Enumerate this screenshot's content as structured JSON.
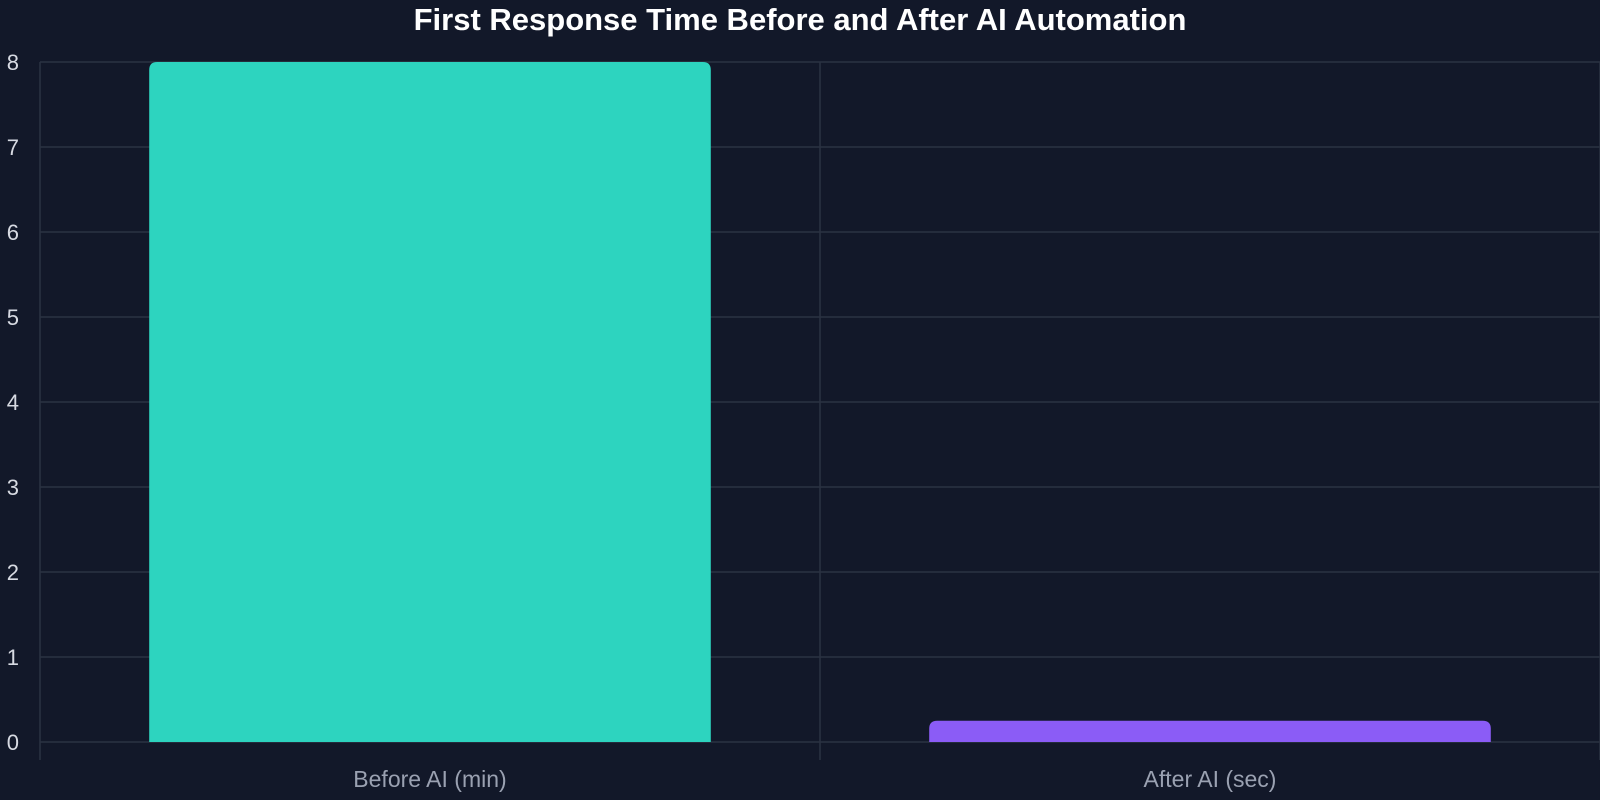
{
  "chart_data": {
    "type": "bar",
    "title": "First Response Time Before and After AI Automation",
    "xlabel": "",
    "ylabel": "",
    "categories": [
      "Before AI (min)",
      "After AI (sec)"
    ],
    "values": [
      8,
      0.25
    ],
    "ylim": [
      0,
      8
    ],
    "yticks": [
      "0",
      "1",
      "2",
      "3",
      "4",
      "5",
      "6",
      "7",
      "8"
    ],
    "grid": true,
    "legend": "none",
    "colors": {
      "background": "#121829",
      "grid": "#2b3242",
      "bars": [
        "#2dd4bf",
        "#8b5cf6"
      ],
      "title": "#ffffff",
      "tick_text": "#d7dae2",
      "category_text": "#9aa1b1"
    }
  }
}
